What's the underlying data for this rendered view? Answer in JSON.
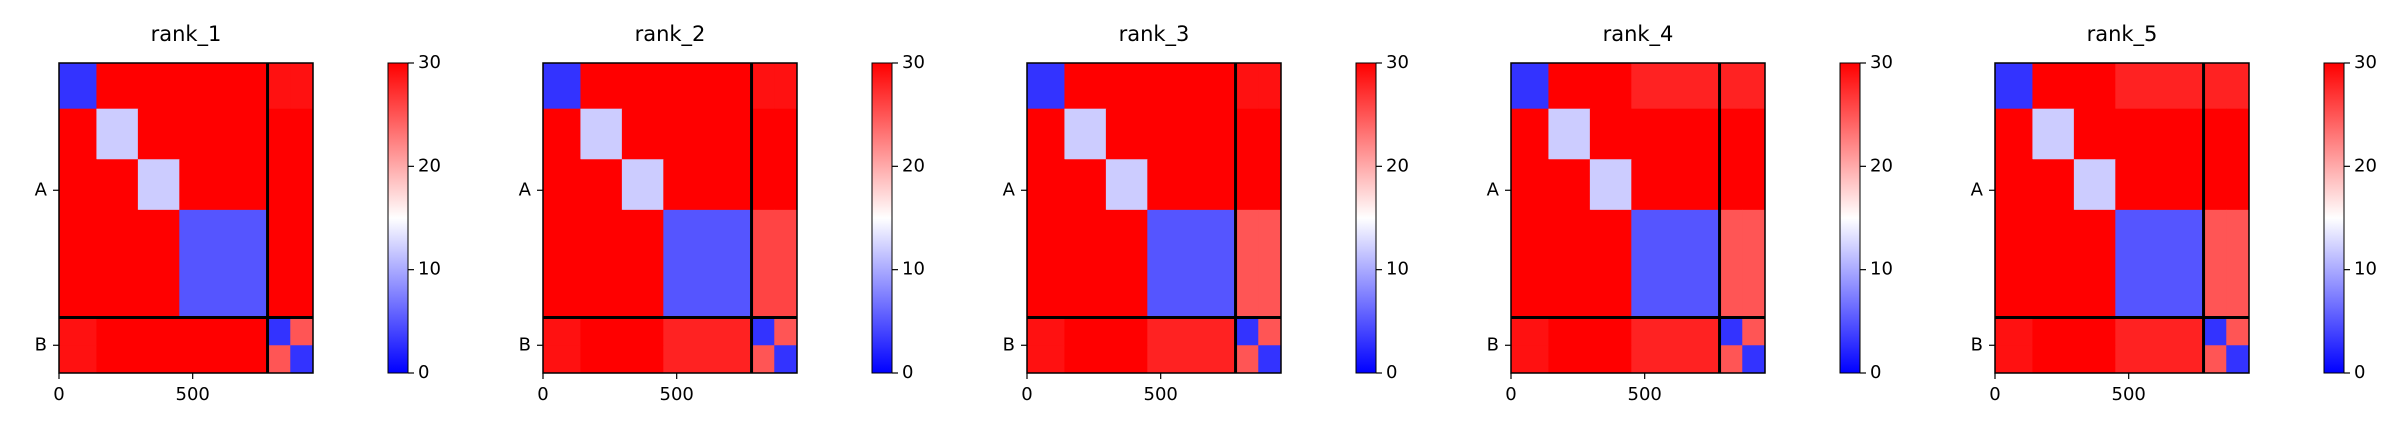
{
  "chart_data": [
    {
      "type": "heatmap",
      "title": "rank_1",
      "edges": [
        0,
        140,
        295,
        450,
        780,
        865,
        950
      ],
      "values": [
        [
          3,
          30,
          30,
          30,
          29,
          29
        ],
        [
          30,
          12,
          30,
          30,
          30,
          30
        ],
        [
          30,
          30,
          12,
          30,
          30,
          30
        ],
        [
          30,
          30,
          30,
          5,
          30,
          30
        ],
        [
          29,
          30,
          30,
          30,
          3,
          25
        ],
        [
          29,
          30,
          30,
          30,
          25,
          3
        ]
      ],
      "xlim": [
        0,
        950
      ],
      "ylim": [
        950,
        0
      ],
      "xticks": [
        0,
        500
      ],
      "yticks": [
        {
          "value": 390,
          "label": "A"
        },
        {
          "value": 865,
          "label": "B"
        }
      ],
      "chain_boundaries": [
        780
      ],
      "clim": [
        0,
        30
      ],
      "cticks": [
        0,
        10,
        20,
        30
      ],
      "colormap": [
        "#0000ff",
        "#ffffff",
        "#ff0000"
      ]
    },
    {
      "type": "heatmap",
      "title": "rank_2",
      "edges": [
        0,
        140,
        295,
        450,
        780,
        865,
        950
      ],
      "values": [
        [
          3,
          30,
          30,
          30,
          29,
          29
        ],
        [
          30,
          12,
          30,
          30,
          30,
          30
        ],
        [
          30,
          30,
          12,
          30,
          30,
          30
        ],
        [
          30,
          30,
          30,
          5,
          26,
          26
        ],
        [
          29,
          30,
          30,
          28,
          3,
          25
        ],
        [
          29,
          30,
          30,
          28,
          25,
          3
        ]
      ],
      "xlim": [
        0,
        950
      ],
      "ylim": [
        950,
        0
      ],
      "xticks": [
        0,
        500
      ],
      "yticks": [
        {
          "value": 390,
          "label": "A"
        },
        {
          "value": 865,
          "label": "B"
        }
      ],
      "chain_boundaries": [
        780
      ],
      "clim": [
        0,
        30
      ],
      "cticks": [
        0,
        10,
        20,
        30
      ],
      "colormap": [
        "#0000ff",
        "#ffffff",
        "#ff0000"
      ]
    },
    {
      "type": "heatmap",
      "title": "rank_3",
      "edges": [
        0,
        140,
        295,
        450,
        780,
        865,
        950
      ],
      "values": [
        [
          3,
          30,
          30,
          30,
          29,
          29
        ],
        [
          30,
          12,
          30,
          30,
          30,
          30
        ],
        [
          30,
          30,
          12,
          30,
          30,
          30
        ],
        [
          30,
          30,
          30,
          5,
          25,
          25
        ],
        [
          29,
          30,
          30,
          28,
          3,
          25
        ],
        [
          29,
          30,
          30,
          28,
          25,
          3
        ]
      ],
      "xlim": [
        0,
        950
      ],
      "ylim": [
        950,
        0
      ],
      "xticks": [
        0,
        500
      ],
      "yticks": [
        {
          "value": 390,
          "label": "A"
        },
        {
          "value": 865,
          "label": "B"
        }
      ],
      "chain_boundaries": [
        780
      ],
      "clim": [
        0,
        30
      ],
      "cticks": [
        0,
        10,
        20,
        30
      ],
      "colormap": [
        "#0000ff",
        "#ffffff",
        "#ff0000"
      ]
    },
    {
      "type": "heatmap",
      "title": "rank_4",
      "edges": [
        0,
        140,
        295,
        450,
        780,
        865,
        950
      ],
      "values": [
        [
          3,
          30,
          30,
          28,
          28,
          28
        ],
        [
          30,
          12,
          30,
          30,
          30,
          30
        ],
        [
          30,
          30,
          12,
          30,
          30,
          30
        ],
        [
          30,
          30,
          30,
          5,
          25,
          25
        ],
        [
          29,
          30,
          30,
          28,
          3,
          25
        ],
        [
          29,
          30,
          30,
          28,
          25,
          3
        ]
      ],
      "xlim": [
        0,
        950
      ],
      "ylim": [
        950,
        0
      ],
      "xticks": [
        0,
        500
      ],
      "yticks": [
        {
          "value": 390,
          "label": "A"
        },
        {
          "value": 865,
          "label": "B"
        }
      ],
      "chain_boundaries": [
        780
      ],
      "clim": [
        0,
        30
      ],
      "cticks": [
        0,
        10,
        20,
        30
      ],
      "colormap": [
        "#0000ff",
        "#ffffff",
        "#ff0000"
      ]
    },
    {
      "type": "heatmap",
      "title": "rank_5",
      "edges": [
        0,
        140,
        295,
        450,
        780,
        865,
        950
      ],
      "values": [
        [
          3,
          30,
          30,
          28,
          28,
          28
        ],
        [
          30,
          12,
          30,
          30,
          30,
          30
        ],
        [
          30,
          30,
          12,
          30,
          30,
          30
        ],
        [
          30,
          30,
          30,
          5,
          25,
          25
        ],
        [
          29,
          30,
          30,
          28,
          3,
          25
        ],
        [
          29,
          30,
          30,
          28,
          25,
          3
        ]
      ],
      "xlim": [
        0,
        950
      ],
      "ylim": [
        950,
        0
      ],
      "xticks": [
        0,
        500
      ],
      "yticks": [
        {
          "value": 390,
          "label": "A"
        },
        {
          "value": 865,
          "label": "B"
        }
      ],
      "chain_boundaries": [
        780
      ],
      "clim": [
        0,
        30
      ],
      "cticks": [
        0,
        10,
        20,
        30
      ],
      "colormap": [
        "#0000ff",
        "#ffffff",
        "#ff0000"
      ]
    }
  ]
}
